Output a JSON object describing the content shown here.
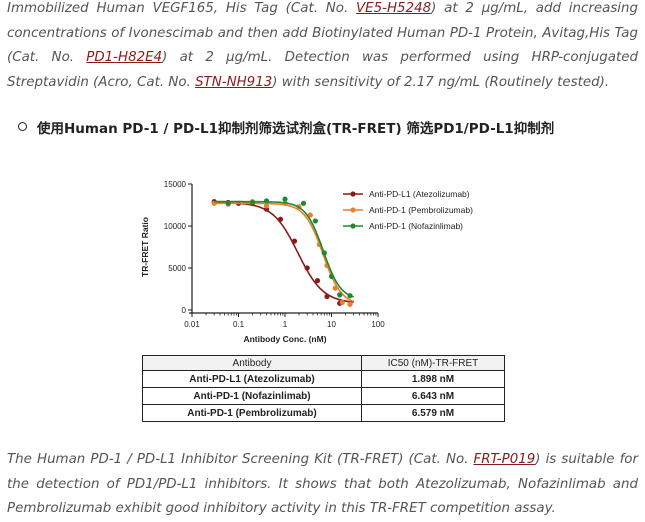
{
  "para1": {
    "t1": "Immobilized Human VEGF165, His Tag (Cat. No. ",
    "l1": "VE5-H5248",
    "t2": ") at 2 μg/mL, add increasing concentrations of Ivonescimab and then add Biotinylated Human PD-1 Protein, Avitag,His Tag (Cat. No. ",
    "l2": "PD1-H82E4",
    "t3": ") at 2 μg/mL. Detection was performed using HRP-conjugated Streptavidin (Acro, Cat. No. ",
    "l3": "STN-NH913",
    "t4": ") with sensitivity of 2.17 ng/mL (Routinely tested)."
  },
  "bullet": "使用Human PD-1 / PD-L1抑制剂筛选试剂盒(TR-FRET) 筛选PD1/PD-L1抑制剂",
  "chart_data": {
    "type": "scatter",
    "xlabel": "Antibody Conc. (nM)",
    "ylabel": "TR-FRET Ratio",
    "xscale": "log",
    "xlim": [
      0.01,
      100
    ],
    "ylim": [
      0,
      15000
    ],
    "x_ticks": [
      "0.01",
      "0.1",
      "1",
      "10",
      "100"
    ],
    "y_ticks": [
      "0",
      "5000",
      "10000",
      "15000"
    ],
    "legend_position": "top-right",
    "series": [
      {
        "name": "Anti-PD-L1 (Atezolizumab)",
        "color": "#8b1a1a",
        "top": 12800,
        "bottom": 800,
        "ic50": 1.898,
        "hill": 1.6,
        "points": [
          [
            0.03,
            12900
          ],
          [
            0.06,
            12800
          ],
          [
            0.1,
            12700
          ],
          [
            0.2,
            12700
          ],
          [
            0.4,
            12000
          ],
          [
            0.8,
            10800
          ],
          [
            1.6,
            8200
          ],
          [
            3,
            5000
          ],
          [
            5,
            3500
          ],
          [
            8,
            1600
          ],
          [
            15,
            800
          ],
          [
            25,
            700
          ]
        ]
      },
      {
        "name": "Anti-PD-1 (Pembrolizumab)",
        "color": "#e87e2e",
        "top": 12700,
        "bottom": 600,
        "ic50": 6.579,
        "hill": 2.2,
        "points": [
          [
            0.03,
            12700
          ],
          [
            0.06,
            12600
          ],
          [
            0.2,
            12900
          ],
          [
            0.4,
            12400
          ],
          [
            1.0,
            12700
          ],
          [
            2.0,
            12300
          ],
          [
            3.5,
            11300
          ],
          [
            5.5,
            7800
          ],
          [
            8,
            5300
          ],
          [
            12,
            2600
          ],
          [
            17,
            900
          ],
          [
            25,
            700
          ]
        ]
      },
      {
        "name": "Anti-PD-1 (Nofazinlimab)",
        "color": "#1e8a2e",
        "top": 12900,
        "bottom": 1200,
        "ic50": 6.643,
        "hill": 2.3,
        "points": [
          [
            0.06,
            12700
          ],
          [
            0.2,
            12800
          ],
          [
            0.4,
            13000
          ],
          [
            1.0,
            13200
          ],
          [
            2.5,
            12700
          ],
          [
            4.5,
            10600
          ],
          [
            7,
            6800
          ],
          [
            10,
            4000
          ],
          [
            15,
            1800
          ],
          [
            25,
            1700
          ]
        ]
      }
    ]
  },
  "table": {
    "headers": [
      "Antibody",
      "IC50 (nM)-TR-FRET"
    ],
    "rows": [
      [
        "Anti-PD-L1 (Atezolizumab)",
        "1.898 nM"
      ],
      [
        "Anti-PD-1 (Nofazinlimab)",
        "6.643 nM"
      ],
      [
        "Anti-PD-1 (Pembrolizumab)",
        "6.579 nM"
      ]
    ]
  },
  "para2": {
    "t1": "The Human PD-1 / PD-L1 Inhibitor Screening Kit (TR-FRET) (Cat. No. ",
    "l1": "FRT-P019",
    "t2": ") is suitable for the detection of PD1/PD-L1 inhibitors. It shows that both Atezolizumab, Nofazinlimab and Pembrolizumab exhibit good inhibitory activity in this TR-FRET competition assay."
  }
}
